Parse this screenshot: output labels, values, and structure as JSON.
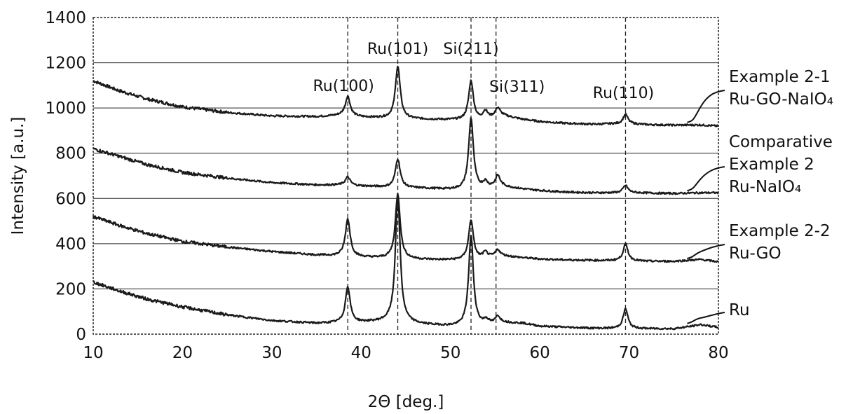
{
  "chart_data": {
    "type": "line",
    "xlabel": "2Θ [deg.]",
    "ylabel": "Intensity [a.u.]",
    "xlim": [
      10,
      80
    ],
    "ylim": [
      0,
      1400
    ],
    "x_ticks": [
      10,
      20,
      30,
      40,
      50,
      60,
      70,
      80
    ],
    "y_ticks": [
      0,
      200,
      400,
      600,
      800,
      1000,
      1200,
      1400
    ],
    "grid": "horizontal solid; vertical dashed at peak positions",
    "reference_lines_x": [
      38.5,
      44.1,
      52.3,
      55.1,
      69.6
    ],
    "peak_annotations": [
      {
        "text": "Ru(100)",
        "x": 38.5
      },
      {
        "text": "Ru(101)",
        "x": 44.1
      },
      {
        "text": "Si(211)",
        "x": 52.3
      },
      {
        "text": "Si(311)",
        "x": 55.1
      },
      {
        "text": "Ru(110)",
        "x": 69.6
      }
    ],
    "series": [
      {
        "legend_lines": [
          "Example 2-1",
          "Ru-GO-NaIO₄"
        ],
        "baseline": [
          [
            10,
            1120
          ],
          [
            13,
            1075
          ],
          [
            16,
            1040
          ],
          [
            20,
            1005
          ],
          [
            25,
            980
          ],
          [
            30,
            965
          ],
          [
            35,
            962
          ],
          [
            38,
            968
          ],
          [
            40,
            960
          ],
          [
            43,
            955
          ],
          [
            47,
            950
          ],
          [
            50,
            948
          ],
          [
            52,
            946
          ],
          [
            53,
            945
          ],
          [
            54,
            950
          ],
          [
            55,
            960
          ],
          [
            56,
            965
          ],
          [
            58,
            950
          ],
          [
            60,
            940
          ],
          [
            63,
            932
          ],
          [
            66,
            928
          ],
          [
            68,
            930
          ],
          [
            70,
            930
          ],
          [
            72,
            926
          ],
          [
            75,
            924
          ],
          [
            78,
            925
          ],
          [
            80,
            920
          ]
        ],
        "peaks": [
          [
            38.5,
            1052
          ],
          [
            44.1,
            1185
          ],
          [
            52.3,
            1120
          ],
          [
            53.9,
            985
          ],
          [
            55.3,
            1000
          ],
          [
            69.6,
            972
          ]
        ]
      },
      {
        "legend_lines": [
          "Comparative",
          "Example 2",
          "Ru-NaIO₄"
        ],
        "baseline": [
          [
            10,
            820
          ],
          [
            13,
            785
          ],
          [
            16,
            750
          ],
          [
            20,
            715
          ],
          [
            25,
            690
          ],
          [
            30,
            670
          ],
          [
            35,
            660
          ],
          [
            38,
            660
          ],
          [
            40,
            655
          ],
          [
            43,
            650
          ],
          [
            47,
            645
          ],
          [
            50,
            640
          ],
          [
            52,
            638
          ],
          [
            53,
            640
          ],
          [
            55,
            650
          ],
          [
            56,
            652
          ],
          [
            58,
            642
          ],
          [
            60,
            635
          ],
          [
            63,
            628
          ],
          [
            66,
            625
          ],
          [
            68,
            625
          ],
          [
            70,
            626
          ],
          [
            72,
            624
          ],
          [
            75,
            622
          ],
          [
            78,
            625
          ],
          [
            80,
            625
          ]
        ],
        "peaks": [
          [
            38.5,
            695
          ],
          [
            44.1,
            775
          ],
          [
            52.3,
            955
          ],
          [
            53.9,
            670
          ],
          [
            55.3,
            700
          ],
          [
            69.6,
            658
          ]
        ]
      },
      {
        "legend_lines": [
          "Example 2-2",
          "Ru-GO"
        ],
        "baseline": [
          [
            10,
            520
          ],
          [
            13,
            480
          ],
          [
            16,
            445
          ],
          [
            20,
            410
          ],
          [
            25,
            385
          ],
          [
            30,
            365
          ],
          [
            35,
            350
          ],
          [
            38,
            345
          ],
          [
            40,
            340
          ],
          [
            43,
            335
          ],
          [
            47,
            330
          ],
          [
            50,
            328
          ],
          [
            52,
            328
          ],
          [
            53,
            330
          ],
          [
            55,
            342
          ],
          [
            56,
            345
          ],
          [
            58,
            338
          ],
          [
            60,
            332
          ],
          [
            63,
            328
          ],
          [
            66,
            326
          ],
          [
            68,
            325
          ],
          [
            70,
            325
          ],
          [
            72,
            322
          ],
          [
            75,
            322
          ],
          [
            78,
            330
          ],
          [
            80,
            320
          ]
        ],
        "peaks": [
          [
            38.5,
            510
          ],
          [
            44.1,
            620
          ],
          [
            52.3,
            505
          ],
          [
            53.9,
            360
          ],
          [
            55.3,
            372
          ],
          [
            69.6,
            398
          ]
        ]
      },
      {
        "legend_lines": [
          "Ru"
        ],
        "baseline": [
          [
            10,
            230
          ],
          [
            13,
            190
          ],
          [
            16,
            155
          ],
          [
            20,
            120
          ],
          [
            25,
            85
          ],
          [
            30,
            60
          ],
          [
            35,
            48
          ],
          [
            38,
            50
          ],
          [
            40,
            52
          ],
          [
            43,
            55
          ],
          [
            47,
            42
          ],
          [
            50,
            35
          ],
          [
            52,
            34
          ],
          [
            53,
            36
          ],
          [
            54,
            40
          ],
          [
            55,
            45
          ],
          [
            56,
            50
          ],
          [
            58,
            48
          ],
          [
            60,
            35
          ],
          [
            63,
            30
          ],
          [
            66,
            26
          ],
          [
            68,
            25
          ],
          [
            70,
            25
          ],
          [
            72,
            24
          ],
          [
            75,
            24
          ],
          [
            77,
            35
          ],
          [
            78,
            42
          ],
          [
            80,
            30
          ]
        ],
        "peaks": [
          [
            38.5,
            210
          ],
          [
            44.1,
            610
          ],
          [
            52.3,
            435
          ],
          [
            54.0,
            60
          ],
          [
            55.3,
            78
          ],
          [
            69.6,
            112
          ]
        ]
      }
    ]
  }
}
